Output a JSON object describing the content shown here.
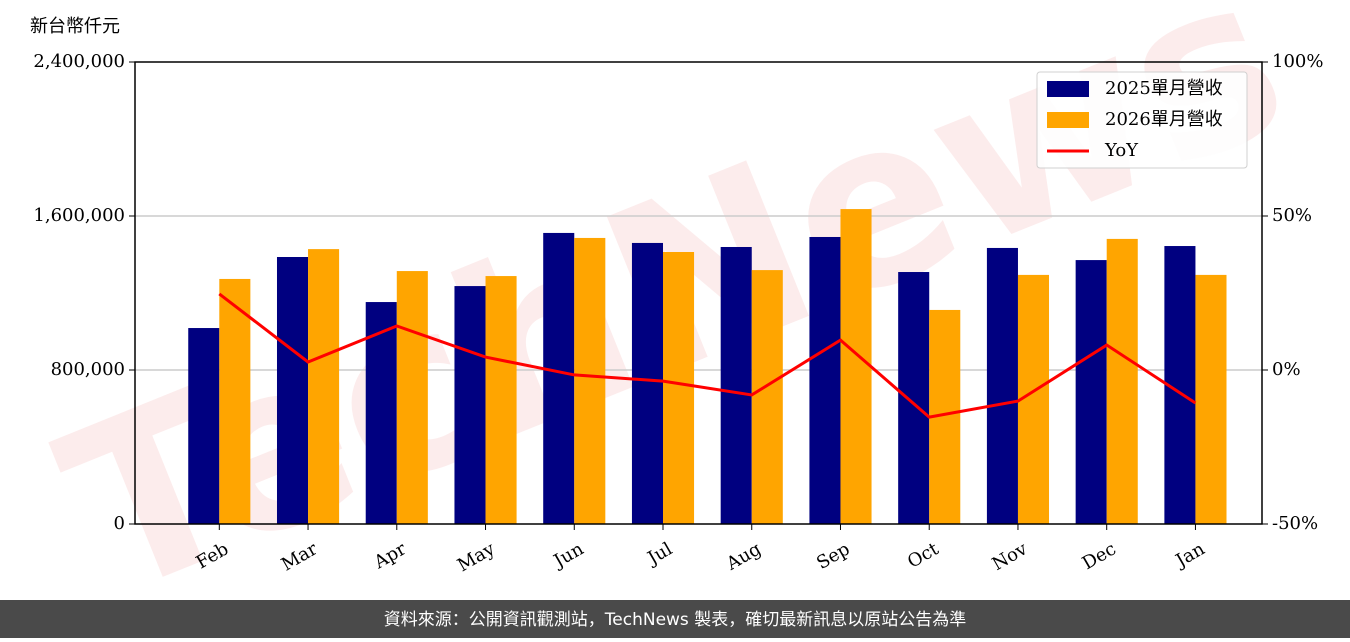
{
  "chart_data": {
    "type": "bar_line",
    "y_label": "新台幣仟元",
    "watermark": "TechNews",
    "footer": "資料來源：公開資訊觀測站，TechNews 製表，確切最新訊息以原站公告為準",
    "categories": [
      "Feb",
      "Mar",
      "Apr",
      "May",
      "Jun",
      "Jul",
      "Aug",
      "Sep",
      "Oct",
      "Nov",
      "Dec",
      "Jan"
    ],
    "series": [
      {
        "name": "2025單月營收",
        "color": "#000080",
        "type": "bar",
        "values": [
          1018000,
          1387000,
          1153000,
          1236000,
          1512000,
          1460000,
          1439000,
          1491000,
          1309000,
          1434000,
          1371000,
          1444000
        ]
      },
      {
        "name": "2026單月營收",
        "color": "#ffa500",
        "type": "bar",
        "values": [
          1273000,
          1428000,
          1314000,
          1288000,
          1486000,
          1413000,
          1319000,
          1636000,
          1112000,
          1294000,
          1481000,
          1294000
        ]
      },
      {
        "name": "YoY",
        "color": "#ff0000",
        "type": "line",
        "axis": "y2",
        "values": [
          24.7,
          2.6,
          14.3,
          4.2,
          -1.6,
          -3.6,
          -8.1,
          9.7,
          -15.3,
          -10.1,
          8.1,
          -10.7
        ]
      }
    ],
    "ylim": [
      0,
      2400000
    ],
    "yticks": [
      0,
      {
        "value": 800000,
        "label": "800,000"
      },
      {
        "value": 1600000,
        "label": "1,600,000"
      },
      {
        "value": 2400000,
        "label": "2,400,000"
      }
    ],
    "y2lim": [
      -50,
      100
    ],
    "y2ticks": [
      {
        "value": -50,
        "label": "-50%"
      },
      {
        "value": 0,
        "label": "0%"
      },
      {
        "value": 50,
        "label": "50%"
      },
      {
        "value": 100,
        "label": "100%"
      }
    ],
    "grid": true,
    "legend": "upper right"
  }
}
